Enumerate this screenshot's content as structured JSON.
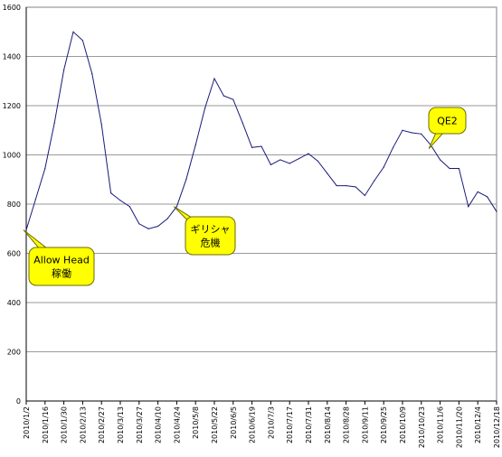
{
  "chart_data": {
    "type": "line",
    "title": "",
    "xlabel": "",
    "ylabel": "",
    "ylim": [
      0,
      1600
    ],
    "yticks": [
      0,
      200,
      400,
      600,
      800,
      1000,
      1200,
      1400,
      1600
    ],
    "grid": true,
    "legend": "none",
    "colors": {
      "line": "#1a1a7a",
      "grid": "#9a9a9a",
      "callout_fill": "#ffff00",
      "callout_border": "#6b6b00"
    },
    "x_tick_labels": [
      "2010/1/2",
      "2010/1/16",
      "2010/1/30",
      "2010/2/13",
      "2010/2/27",
      "2010/3/13",
      "2010/3/27",
      "2010/4/10",
      "2010/4/24",
      "2010/5/8",
      "2010/5/22",
      "2010/6/5",
      "2010/6/19",
      "2010/7/3",
      "2010/7/17",
      "2010/7/31",
      "2010/8/14",
      "2010/8/28",
      "2010/9/11",
      "2010/9/25",
      "2010/10/9",
      "2010/10/23",
      "2010/11/6",
      "2010/11/20",
      "2010/12/4",
      "2010/12/18"
    ],
    "series": [
      {
        "values": [
          695,
          820,
          945,
          1130,
          1345,
          1500,
          1465,
          1330,
          1125,
          845,
          815,
          790,
          720,
          700,
          710,
          740,
          790,
          900,
          1040,
          1190,
          1310,
          1240,
          1225,
          1130,
          1030,
          1035,
          960,
          980,
          965,
          985,
          1005,
          975,
          925,
          875,
          875,
          870,
          835,
          895,
          950,
          1030,
          1100,
          1090,
          1085,
          1040,
          980,
          945,
          945,
          790,
          850,
          830,
          770
        ]
      }
    ],
    "annotations": [
      {
        "index": 0,
        "lines": [
          "Allow Head",
          "稼働"
        ]
      },
      {
        "index": 16,
        "lines": [
          "ギリシャ",
          "危機"
        ]
      },
      {
        "index": 43,
        "lines": [
          "QE2"
        ]
      }
    ]
  }
}
